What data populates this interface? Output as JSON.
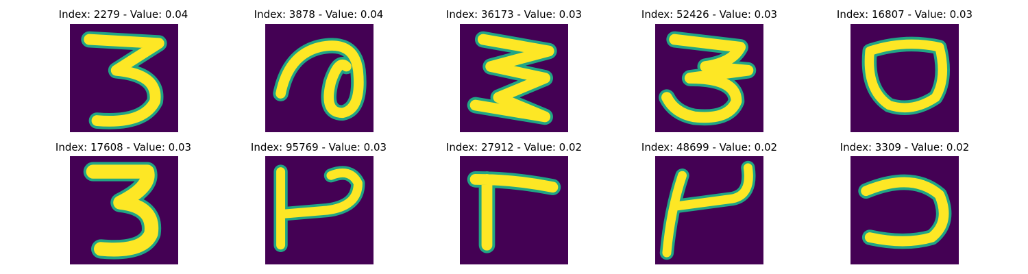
{
  "colors": {
    "background": "#440154",
    "foreground": "#fde725",
    "edge": "#21a585"
  },
  "panels": [
    {
      "index": "2279",
      "value": "0.04",
      "title": "Index: 2279 - Value: 0.04",
      "glyph": "three-digit-icon"
    },
    {
      "index": "3878",
      "value": "0.04",
      "title": "Index: 3878 - Value: 0.04",
      "glyph": "loop-digit-icon"
    },
    {
      "index": "36173",
      "value": "0.03",
      "title": "Index: 36173 - Value: 0.03",
      "glyph": "three-digit-icon"
    },
    {
      "index": "52426",
      "value": "0.03",
      "title": "Index: 52426 - Value: 0.03",
      "glyph": "three-digit-icon"
    },
    {
      "index": "16807",
      "value": "0.03",
      "title": "Index: 16807 - Value: 0.03",
      "glyph": "zero-digit-icon"
    },
    {
      "index": "17608",
      "value": "0.03",
      "title": "Index: 17608 - Value: 0.03",
      "glyph": "three-digit-icon"
    },
    {
      "index": "95769",
      "value": "0.03",
      "title": "Index: 95769 - Value: 0.03",
      "glyph": "h-glyph-icon"
    },
    {
      "index": "27912",
      "value": "0.02",
      "title": "Index: 27912 - Value: 0.02",
      "glyph": "r-glyph-icon"
    },
    {
      "index": "48699",
      "value": "0.02",
      "title": "Index: 48699 - Value: 0.02",
      "glyph": "u-glyph-icon"
    },
    {
      "index": "3309",
      "value": "0.02",
      "title": "Index: 3309 - Value: 0.02",
      "glyph": "reversed-c-glyph-icon"
    }
  ]
}
